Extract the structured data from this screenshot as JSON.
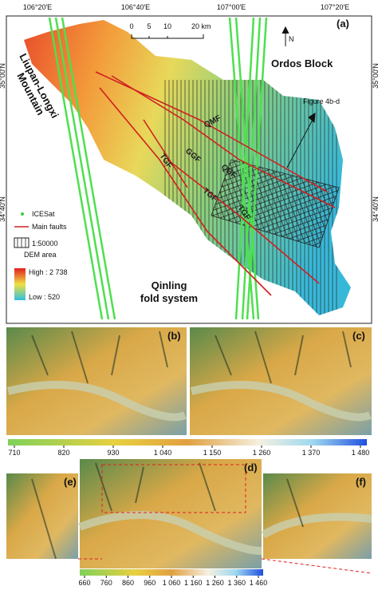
{
  "panel_a": {
    "label": "(a)",
    "north": "N",
    "coords": {
      "top": [
        "106°20′E",
        "106°40′E",
        "107°00′E",
        "107°20′E"
      ],
      "left": [
        "35°00′N",
        "34°40′N"
      ],
      "right": [
        "35°00′N",
        "34°40′N"
      ]
    },
    "scale": [
      "0",
      "5",
      "10",
      "20 km"
    ],
    "regions": {
      "ordos": "Ordos Block",
      "liupan": [
        "Liupan-Longxi",
        "Mountain"
      ],
      "qinling": [
        "Qinling",
        "fold system"
      ]
    },
    "figure_ref": "Figure 4b-d",
    "faults": [
      "QMF",
      "GGF",
      "QBF",
      "TGF",
      "TGF",
      "TGF"
    ],
    "legend": {
      "icesat": "ICESat",
      "faults": "Main faults",
      "dem_area": [
        "1:50000",
        "DEM area"
      ],
      "high": "High : 2 738",
      "low": "Low : 520"
    }
  },
  "panels": [
    "(b)",
    "(c)",
    "(d)",
    "(e)",
    "(f)"
  ],
  "colorbar_1": {
    "ticks": [
      710,
      820,
      930,
      {
        "value": 1040,
        "label": "1 040"
      },
      {
        "value": 1150,
        "label": "1 150"
      },
      {
        "value": 1260,
        "label": "1 260"
      },
      {
        "value": 1370,
        "label": "1 370"
      },
      {
        "value": 1480,
        "label": "1 480"
      }
    ]
  },
  "colorbar_2": {
    "ticks": [
      660,
      760,
      860,
      960,
      {
        "value": 1060,
        "label": "1 060"
      },
      {
        "value": 1160,
        "label": "1 160"
      },
      {
        "value": 1260,
        "label": "1 260"
      },
      {
        "value": 1360,
        "label": "1 360"
      },
      {
        "value": 1460,
        "label": "1 460"
      }
    ]
  }
}
